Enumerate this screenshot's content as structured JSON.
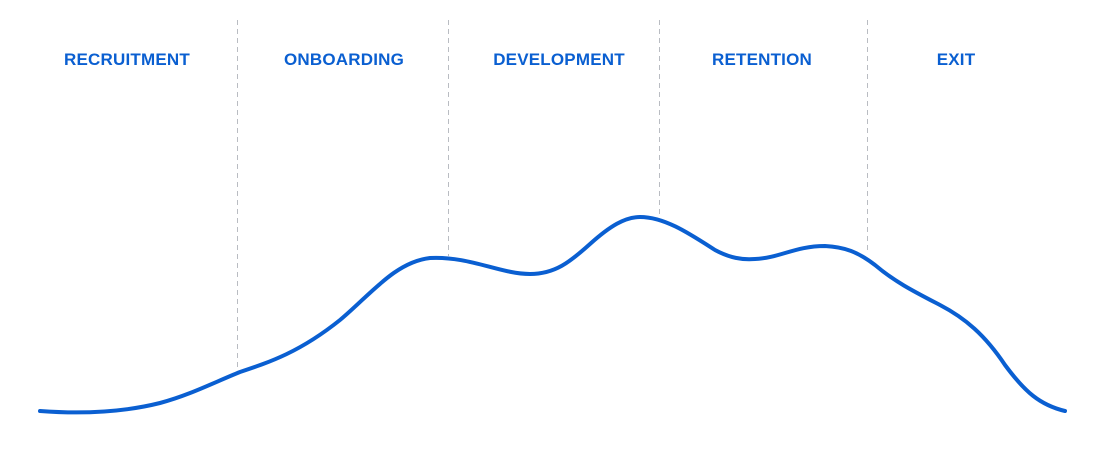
{
  "colors": {
    "accent": "#0a5fd1",
    "divider": "#b9bcc2",
    "background": "#ffffff"
  },
  "stages": [
    {
      "label": "RECRUITMENT"
    },
    {
      "label": "ONBOARDING"
    },
    {
      "label": "DEVELOPMENT"
    },
    {
      "label": "RETENTION"
    },
    {
      "label": "EXIT"
    }
  ]
}
